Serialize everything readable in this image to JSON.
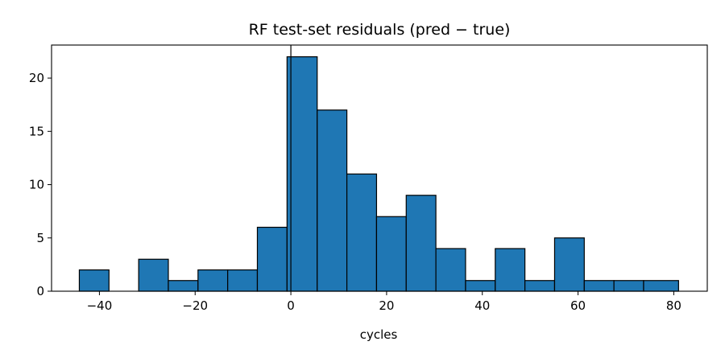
{
  "chart_data": {
    "type": "bar",
    "title": "RF test-set residuals  (pred − true)",
    "xlabel": "cycles",
    "ylabel": "",
    "xlim": [
      -50,
      87
    ],
    "ylim": [
      0,
      23.1
    ],
    "x_ticks": [
      -40,
      -20,
      0,
      20,
      40,
      60,
      80
    ],
    "x_tick_labels": [
      "−40",
      "−20",
      "0",
      "20",
      "40",
      "60",
      "80"
    ],
    "y_ticks": [
      0,
      5,
      10,
      15,
      20
    ],
    "y_tick_labels": [
      "0",
      "5",
      "10",
      "15",
      "20"
    ],
    "bin_edges": [
      -44.2,
      -38.0,
      -31.8,
      -25.6,
      -19.4,
      -13.2,
      -7.0,
      -0.8,
      5.5,
      11.7,
      17.9,
      24.1,
      30.3,
      36.5,
      42.7,
      48.9,
      55.1,
      61.3,
      67.5,
      73.7,
      81.0
    ],
    "counts": [
      2,
      0,
      3,
      1,
      2,
      2,
      6,
      22,
      17,
      11,
      7,
      9,
      4,
      1,
      4,
      1,
      5,
      1,
      1,
      1
    ],
    "vline_x": 0,
    "bar_color": "#1f77b4",
    "edge_color": "#000000",
    "grid": false
  }
}
